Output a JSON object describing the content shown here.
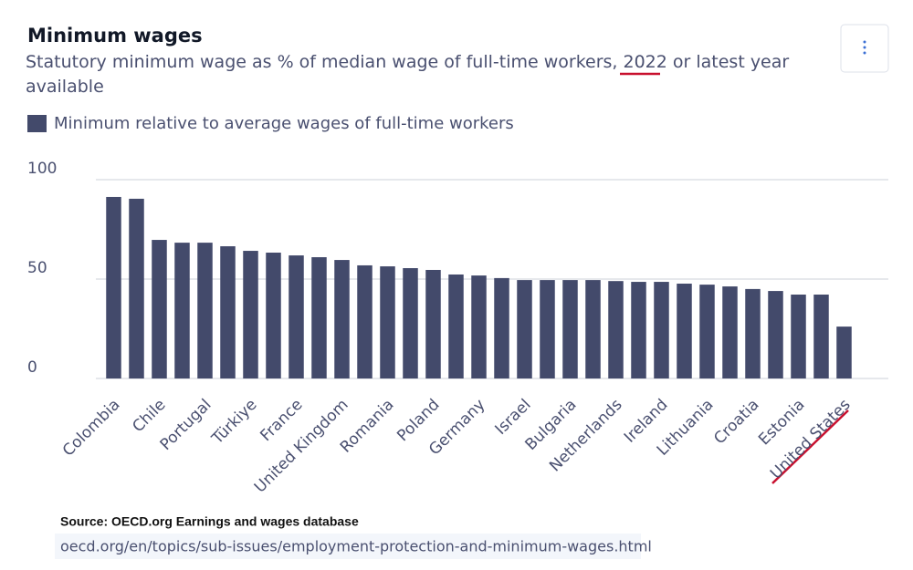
{
  "chart_data": {
    "type": "bar",
    "title": "Minimum wages",
    "subtitle": "Statutory minimum wage as % of median wage of full-time workers, 2022 or latest year available",
    "source": "Source: OECD.org Earnings and wages database",
    "url": "oecd.org/en/topics/sub-issues/employment-protection-and-minimum-wages.html",
    "categories": [
      "Colombia",
      null,
      "Chile",
      null,
      "Portugal",
      null,
      "Türkiye",
      null,
      "France",
      null,
      "United Kingdom",
      null,
      "Romania",
      null,
      "Poland",
      null,
      "Germany",
      null,
      "Israel",
      null,
      "Bulgaria",
      null,
      "Netherlands",
      null,
      "Ireland",
      null,
      "Lithuania",
      null,
      "Croatia",
      null,
      "Estonia",
      null,
      "United States"
    ],
    "series": [
      {
        "name": "Minimum relative to average wages of full-time workers",
        "color": "#434a6b",
        "values": [
          91.3,
          90.4,
          69.7,
          68.3,
          68.3,
          66.5,
          64.2,
          63.3,
          61.9,
          61,
          59.6,
          56.9,
          56.4,
          55.5,
          54.6,
          52.3,
          51.8,
          50.5,
          49.5,
          49.5,
          49.5,
          49.5,
          49,
          48.6,
          48.6,
          47.7,
          47.2,
          46.3,
          45,
          44,
          42.2,
          42.2,
          26.1
        ]
      }
    ],
    "ylim": [
      0,
      100
    ],
    "yticks": [
      0,
      50,
      100
    ],
    "grid": true
  }
}
